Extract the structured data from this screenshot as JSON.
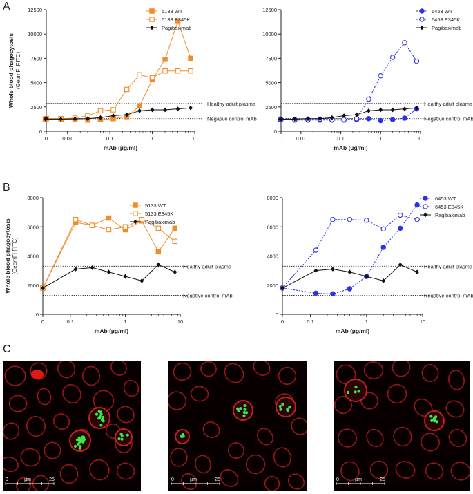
{
  "panel_labels": {
    "A": "A",
    "B": "B",
    "C": "C"
  },
  "colors": {
    "orange": "#f28c28",
    "blue": "#2b33e6",
    "black": "#111111",
    "cell_red": "#c42020",
    "bacteria_green": "#39e84a"
  },
  "chart_data": [
    {
      "id": "A-left",
      "panel": "A",
      "type": "line",
      "xscale": "log-with-zero",
      "ylabel": "Whole blood phagocytosis",
      "ylabel2": "(GeomFI FITC)",
      "xlabel": "mAb (µg/ml)",
      "xticks": [
        "0",
        "0.01",
        "0.1",
        "1",
        "10"
      ],
      "yticks": [
        "0",
        "2500",
        "5000",
        "7500",
        "10000",
        "12500"
      ],
      "ylim": [
        0,
        12500
      ],
      "x": [
        0,
        0.003,
        0.007,
        0.015,
        0.03,
        0.06,
        0.12,
        0.25,
        0.5,
        1,
        2,
        4,
        8
      ],
      "series": [
        {
          "name": "5133 WT",
          "color": "#f28c28",
          "marker": "square-filled",
          "dash": false,
          "values": [
            1300,
            1280,
            1250,
            1200,
            1150,
            1200,
            1300,
            1500,
            2600,
            5300,
            7400,
            11300,
            7500
          ]
        },
        {
          "name": "5133 E345K",
          "color": "#f28c28",
          "marker": "square-open",
          "dash": false,
          "values": [
            1300,
            1250,
            1300,
            1350,
            1600,
            2100,
            2200,
            4300,
            5800,
            5500,
            6200,
            6200,
            6200
          ]
        },
        {
          "name": "Pagibaximab",
          "color": "#111111",
          "marker": "diamond-filled",
          "dash": false,
          "values": [
            1300,
            1250,
            1250,
            1280,
            1300,
            1400,
            1600,
            1700,
            2100,
            2200,
            2200,
            2300,
            2400
          ]
        }
      ],
      "reference_lines": [
        {
          "label": "Healthy adult plasma",
          "value": 2850
        },
        {
          "label": "Negative control mAb",
          "value": 1300
        }
      ]
    },
    {
      "id": "A-right",
      "panel": "A",
      "type": "line",
      "xscale": "log-with-zero",
      "xlabel": "mAb (µg/ml)",
      "xticks": [
        "0",
        "0.01",
        "0.1",
        "1",
        "10"
      ],
      "yticks": [
        "0",
        "2500",
        "5000",
        "7500",
        "10000",
        "12500"
      ],
      "ylim": [
        0,
        12500
      ],
      "x": [
        0,
        0.003,
        0.007,
        0.015,
        0.03,
        0.06,
        0.12,
        0.25,
        0.5,
        1,
        2,
        4,
        8
      ],
      "series": [
        {
          "name": "6453 WT",
          "color": "#2b33e6",
          "marker": "circle-filled",
          "dash": true,
          "values": [
            1200,
            1200,
            1150,
            1150,
            1150,
            1150,
            1150,
            1200,
            1300,
            1100,
            1200,
            1350,
            2300
          ]
        },
        {
          "name": "6453 E345K",
          "color": "#2b33e6",
          "marker": "circle-open",
          "dash": true,
          "values": [
            1200,
            1250,
            1200,
            1200,
            1250,
            1200,
            1200,
            1300,
            3300,
            5700,
            7600,
            9100,
            7200
          ]
        },
        {
          "name": "Pagibaximab",
          "color": "#111111",
          "marker": "diamond-filled",
          "dash": false,
          "values": [
            1250,
            1250,
            1250,
            1300,
            1300,
            1400,
            1600,
            1700,
            2100,
            2200,
            2200,
            2300,
            2400
          ]
        }
      ],
      "reference_lines": [
        {
          "label": "Healthy adult plasma",
          "value": 2850
        },
        {
          "label": "Negative control mAb",
          "value": 1300
        }
      ]
    },
    {
      "id": "B-left",
      "panel": "B",
      "type": "line",
      "xscale": "log-with-zero",
      "ylabel": "Whole blood phagocytosis",
      "ylabel2": "(GeomFI FITC)",
      "xlabel": "mAb (µg/ml)",
      "xticks": [
        "0",
        "0.1",
        "1",
        "10"
      ],
      "yticks": [
        "0",
        "2000",
        "4000",
        "6000",
        "8000"
      ],
      "ylim": [
        0,
        8000
      ],
      "x": [
        0,
        0.125,
        0.25,
        0.5,
        1,
        2,
        4,
        8
      ],
      "series": [
        {
          "name": "5133 WT",
          "color": "#f28c28",
          "marker": "square-filled",
          "dash": false,
          "values": [
            1800,
            6300,
            6100,
            6600,
            5800,
            6400,
            4300,
            5900
          ]
        },
        {
          "name": "5133 E345K",
          "color": "#f28c28",
          "marker": "square-open",
          "dash": false,
          "values": [
            1800,
            6500,
            6100,
            5800,
            6000,
            6500,
            5900,
            5000
          ]
        },
        {
          "name": "Pagibaximab",
          "color": "#111111",
          "marker": "diamond-filled",
          "dash": false,
          "values": [
            1800,
            3100,
            3200,
            2900,
            2600,
            2300,
            3400,
            2900
          ]
        }
      ],
      "reference_lines": [
        {
          "label": "Healthy adult plasma",
          "value": 3300
        },
        {
          "label": "Negative control mAb",
          "value": 1300
        }
      ]
    },
    {
      "id": "B-right",
      "panel": "B",
      "type": "line",
      "xscale": "log-with-zero",
      "xlabel": "mAb (µg/ml)",
      "xticks": [
        "0",
        "0.1",
        "1",
        "10"
      ],
      "yticks": [
        "0",
        "2000",
        "4000",
        "6000",
        "8000"
      ],
      "ylim": [
        0,
        8000
      ],
      "x": [
        0,
        0.125,
        0.25,
        0.5,
        1,
        2,
        4,
        8
      ],
      "series": [
        {
          "name": "6453 WT",
          "color": "#2b33e6",
          "marker": "circle-filled",
          "dash": true,
          "values": [
            1800,
            1450,
            1400,
            1750,
            2600,
            4600,
            5900,
            7500
          ]
        },
        {
          "name": "6453 E345K",
          "color": "#2b33e6",
          "marker": "circle-open",
          "dash": true,
          "values": [
            1800,
            4400,
            6500,
            6500,
            6450,
            5850,
            6800,
            6500
          ]
        },
        {
          "name": "Pagibaximab",
          "color": "#111111",
          "marker": "diamond-filled",
          "dash": false,
          "values": [
            1800,
            3000,
            3100,
            2900,
            2600,
            2300,
            3400,
            2900
          ]
        }
      ],
      "reference_lines": [
        {
          "label": "Healthy adult plasma",
          "value": 3300
        },
        {
          "label": "Negative control mAb",
          "value": 1300
        }
      ]
    }
  ],
  "micrographs": [
    {
      "name": "micrograph-1",
      "scalebar": {
        "start": "0",
        "unit": "µm",
        "end": "25"
      }
    },
    {
      "name": "micrograph-2",
      "scalebar": {
        "start": "0",
        "unit": "µm",
        "end": "25"
      }
    },
    {
      "name": "micrograph-3",
      "scalebar": {
        "start": "0",
        "unit": "µm",
        "end": "25"
      }
    }
  ]
}
